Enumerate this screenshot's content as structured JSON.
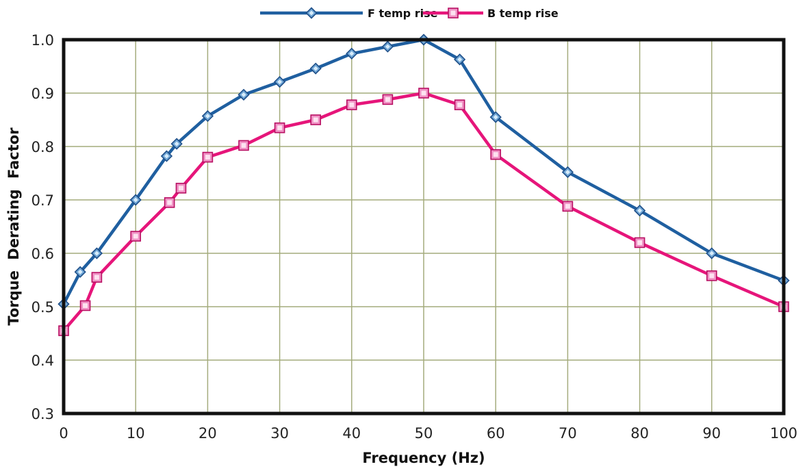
{
  "chart_data": {
    "type": "line",
    "xlabel": "Frequency (Hz)",
    "ylabel": "Torque Derating Factor",
    "xlim": [
      0,
      100
    ],
    "ylim": [
      0.3,
      1.0
    ],
    "xticks": [
      0,
      10,
      20,
      30,
      40,
      50,
      60,
      70,
      80,
      90,
      100
    ],
    "yticks": [
      "0.3",
      "0.4",
      "0.5",
      "0.6",
      "0.7",
      "0.8",
      "0.9",
      "1.0"
    ],
    "grid": true,
    "legend_position": "top-center",
    "series": [
      {
        "name": "F temp rise",
        "color": "#1f5fa0",
        "marker": "diamond",
        "x": [
          0,
          2.3,
          4.6,
          10,
          14.3,
          15.7,
          20,
          25,
          30,
          35,
          40,
          45,
          50,
          55,
          60,
          70,
          80,
          90,
          100
        ],
        "y": [
          0.505,
          0.565,
          0.6,
          0.7,
          0.782,
          0.805,
          0.857,
          0.897,
          0.921,
          0.946,
          0.974,
          0.987,
          1.0,
          0.963,
          0.855,
          0.752,
          0.68,
          0.6,
          0.549
        ]
      },
      {
        "name": "B temp rise",
        "color": "#e6157a",
        "marker": "square",
        "x": [
          0,
          3,
          4.6,
          10,
          14.7,
          16.3,
          20,
          25,
          30,
          35,
          40,
          45,
          50,
          55,
          60,
          70,
          80,
          90,
          100
        ],
        "y": [
          0.455,
          0.502,
          0.555,
          0.632,
          0.695,
          0.722,
          0.78,
          0.802,
          0.835,
          0.85,
          0.878,
          0.888,
          0.9,
          0.878,
          0.785,
          0.688,
          0.62,
          0.558,
          0.5
        ]
      }
    ]
  }
}
